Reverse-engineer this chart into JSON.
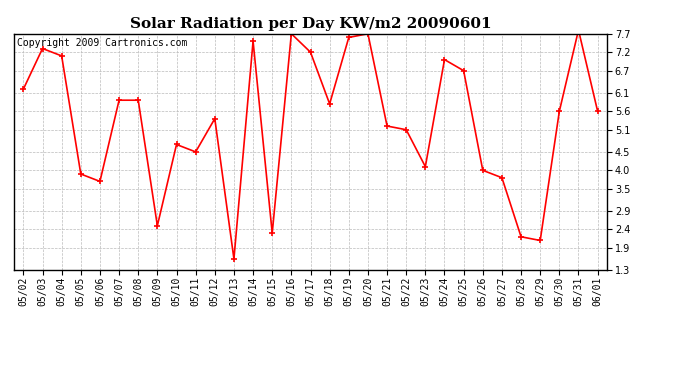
{
  "title": "Solar Radiation per Day KW/m2 20090601",
  "copyright": "Copyright 2009 Cartronics.com",
  "dates": [
    "05/02",
    "05/03",
    "05/04",
    "05/05",
    "05/06",
    "05/07",
    "05/08",
    "05/09",
    "05/10",
    "05/11",
    "05/12",
    "05/13",
    "05/14",
    "05/15",
    "05/16",
    "05/17",
    "05/18",
    "05/19",
    "05/20",
    "05/21",
    "05/22",
    "05/23",
    "05/24",
    "05/25",
    "05/26",
    "05/27",
    "05/28",
    "05/29",
    "05/30",
    "05/31",
    "06/01"
  ],
  "values": [
    6.2,
    7.3,
    7.1,
    3.9,
    3.7,
    5.9,
    5.9,
    2.5,
    4.7,
    4.5,
    5.4,
    1.6,
    7.5,
    2.3,
    7.7,
    7.2,
    5.8,
    7.6,
    7.7,
    5.2,
    5.1,
    4.1,
    7.0,
    6.7,
    4.0,
    3.8,
    2.2,
    2.1,
    5.6,
    7.8,
    5.6
  ],
  "line_color": "#ff0000",
  "marker": "+",
  "marker_size": 4,
  "marker_edge_width": 1.2,
  "line_width": 1.2,
  "background_color": "#ffffff",
  "grid_color": "#bbbbbb",
  "ylim": [
    1.3,
    7.7
  ],
  "yticks": [
    1.3,
    1.9,
    2.4,
    2.9,
    3.5,
    4.0,
    4.5,
    5.1,
    5.6,
    6.1,
    6.7,
    7.2,
    7.7
  ],
  "title_fontsize": 11,
  "tick_fontsize": 7,
  "copyright_fontsize": 7,
  "fig_width": 6.9,
  "fig_height": 3.75,
  "fig_dpi": 100
}
